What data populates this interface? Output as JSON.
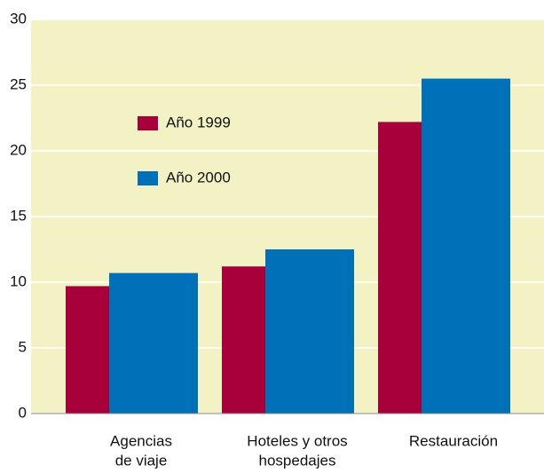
{
  "chart_data": {
    "type": "bar",
    "categories": [
      [
        "Agencias",
        "de viaje"
      ],
      [
        "Hoteles y otros",
        "hospedajes"
      ],
      [
        "Restauración"
      ]
    ],
    "series": [
      {
        "name": "Año 1999",
        "color": "#a8003a",
        "values": [
          9.7,
          11.2,
          22.2
        ]
      },
      {
        "name": "Año 2000",
        "color": "#0070b8",
        "values": [
          10.7,
          12.5,
          25.5
        ]
      }
    ],
    "ylim": [
      0,
      30
    ],
    "yticks": [
      0,
      5,
      10,
      15,
      20,
      25,
      30
    ],
    "grid": true
  }
}
